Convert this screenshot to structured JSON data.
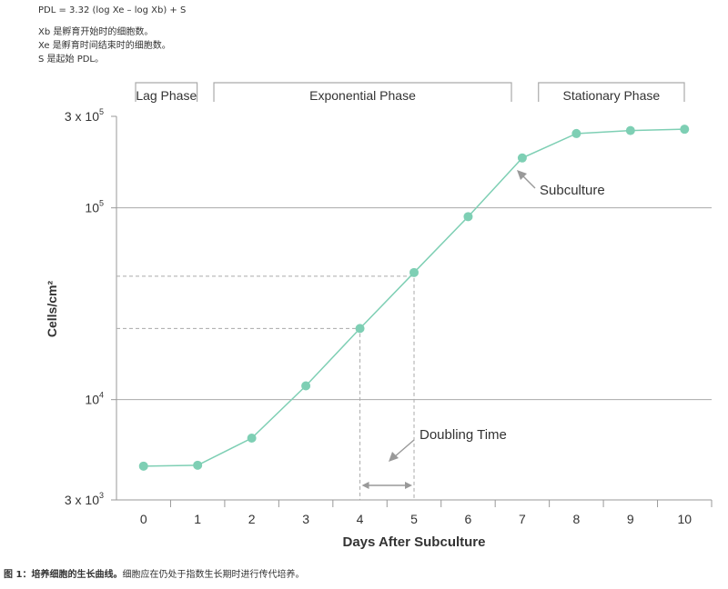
{
  "notes": {
    "formula": "PDL = 3.32 (log Xe – log Xb) + S",
    "lines": [
      "Xb 是孵育开始时的细胞数。",
      "Xe 是孵育时间结束时的细胞数。",
      "S 是起始 PDL。"
    ]
  },
  "caption": {
    "label": "图 1：培养细胞的生长曲线。",
    "text": "细胞应在仍处于指数生长期时进行传代培养。"
  },
  "colors": {
    "series": "#7ecfb4",
    "axis": "#999999",
    "grid": "#aaaaaa",
    "annotation": "#999999",
    "text": "#333333"
  },
  "chart_data": {
    "type": "line",
    "xlabel": "Days After Subculture",
    "ylabel": "Cells/cm²",
    "yscale": "log",
    "ylim": [
      3000,
      300000
    ],
    "xlim": [
      -0.5,
      10.5
    ],
    "xticks": [
      0,
      1,
      2,
      3,
      4,
      5,
      6,
      7,
      8,
      9,
      10
    ],
    "yticks": [
      {
        "value": 3000,
        "label": "3 x 10",
        "exp": "3"
      },
      {
        "value": 10000,
        "label": "10",
        "exp": "4"
      },
      {
        "value": 100000,
        "label": "10",
        "exp": "5"
      },
      {
        "value": 300000,
        "label": "3 x 10",
        "exp": "5"
      }
    ],
    "grid_y": [
      10000,
      100000
    ],
    "series": [
      {
        "x": [
          0,
          1,
          2,
          3,
          4,
          5,
          6,
          7,
          8,
          9,
          10
        ],
        "y": [
          4500,
          4550,
          6300,
          11800,
          23500,
          46000,
          90000,
          182000,
          244000,
          253000,
          257000
        ]
      }
    ],
    "phases": [
      {
        "label": "Lag Phase",
        "from": -0.5,
        "to": 0.99
      },
      {
        "label": "Exponential Phase",
        "from": 1.3,
        "to": 6.8
      },
      {
        "label": "Stationary Phase",
        "from": 7.3,
        "to": 10.5
      }
    ],
    "annotations": [
      {
        "text": "Subculture"
      },
      {
        "text": "Doubling Time"
      }
    ],
    "doubling": {
      "x_start": 4,
      "x_end": 5,
      "y_start": 23500,
      "y_end": 44000
    }
  }
}
